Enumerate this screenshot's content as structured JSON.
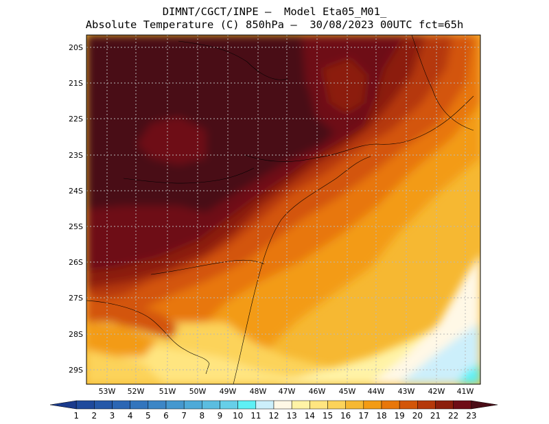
{
  "header": {
    "line1": "DIMNT/CGCT/INPE –  Model Eta05_M01_",
    "line2": "Absolute Temperature (C) 850hPa –  30/08/2023 00UTC fct=65h"
  },
  "axes": {
    "lat_labels": [
      "20S",
      "21S",
      "22S",
      "23S",
      "24S",
      "25S",
      "26S",
      "27S",
      "28S",
      "29S"
    ],
    "lon_labels": [
      "53W",
      "52W",
      "51W",
      "50W",
      "49W",
      "48W",
      "47W",
      "46W",
      "45W",
      "44W",
      "43W",
      "42W",
      "41W"
    ]
  },
  "colorbar": {
    "labels": [
      "1",
      "2",
      "3",
      "4",
      "5",
      "6",
      "7",
      "8",
      "9",
      "10",
      "11",
      "12",
      "13",
      "14",
      "15",
      "16",
      "17",
      "18",
      "19",
      "20",
      "21",
      "22",
      "23"
    ],
    "colors": [
      "#1a3a8c",
      "#1f4a9c",
      "#2558a8",
      "#2b66b4",
      "#3375bd",
      "#3c86c6",
      "#4598cf",
      "#4eaad8",
      "#5bbde0",
      "#66cfe8",
      "#5ef0f5",
      "#cceffb",
      "#fff8e6",
      "#fff3a6",
      "#ffe580",
      "#fcd35a",
      "#f6b832",
      "#f39b14",
      "#e8770a",
      "#d35508",
      "#b5380a",
      "#8c1e0c",
      "#6e0c16",
      "#4a0c16"
    ]
  }
}
